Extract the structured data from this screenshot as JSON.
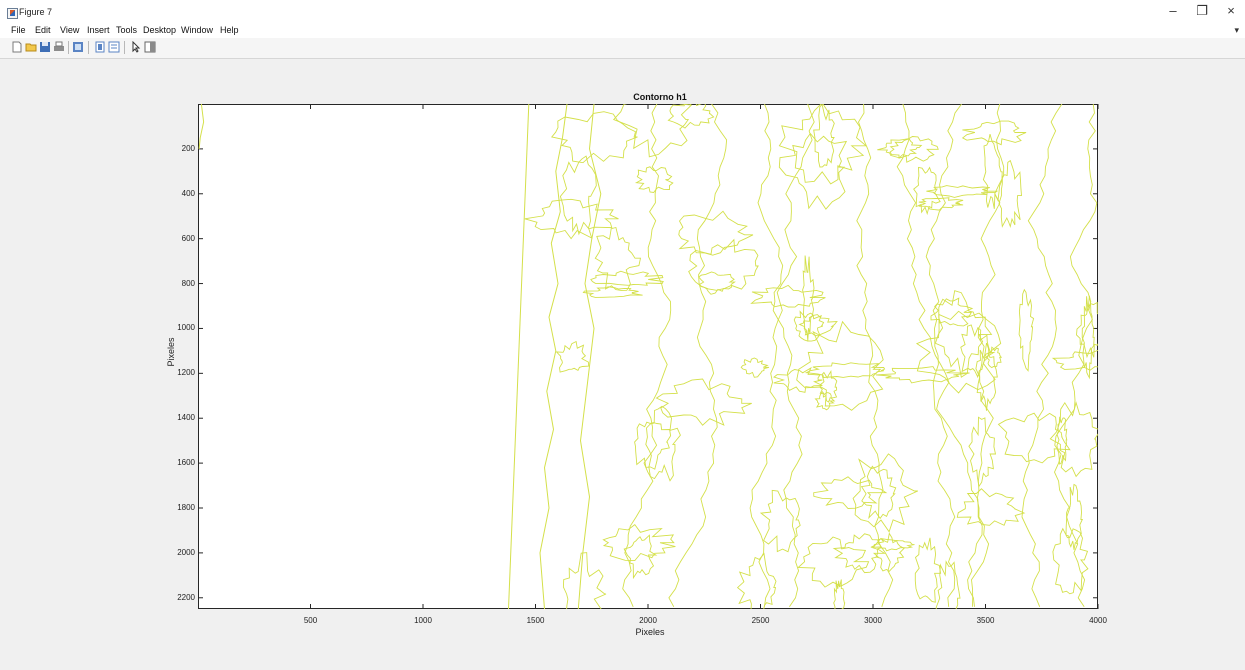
{
  "window": {
    "title": "Figure 7",
    "controls": {
      "minimize": "–",
      "restore": "❐",
      "close": "×"
    }
  },
  "menu": {
    "items": [
      "File",
      "Edit",
      "View",
      "Insert",
      "Tools",
      "Desktop",
      "Window",
      "Help"
    ],
    "overflow": "▾"
  },
  "toolbar": {
    "buttons": [
      "new-figure-icon",
      "open-file-icon",
      "save-icon",
      "print-icon",
      "link-plot-icon",
      "colorbar-icon",
      "legend-icon",
      "pointer-icon",
      "property-editor-icon"
    ]
  },
  "chart_data": {
    "type": "line",
    "title": "Contorno h1",
    "xlabel": "Pixeles",
    "ylabel": "Pixeles",
    "xlim": [
      0,
      4000
    ],
    "ylim": [
      0,
      2250
    ],
    "y_reversed": true,
    "grid": false,
    "xticks": [
      500,
      1000,
      1500,
      2000,
      2500,
      3000,
      3500,
      4000
    ],
    "yticks": [
      200,
      400,
      600,
      800,
      1000,
      1200,
      1400,
      1600,
      1800,
      2000,
      2200
    ],
    "line_color": "#d4e04a",
    "series": [
      {
        "x": [
          1470,
          1380
        ],
        "y": [
          0,
          2250
        ]
      },
      {
        "x": [
          1640,
          1620,
          1590,
          1610,
          1570,
          1600,
          1560,
          1590,
          1550,
          1580,
          1540,
          1560,
          1520,
          1540
        ],
        "y": [
          0,
          150,
          300,
          480,
          620,
          800,
          950,
          1100,
          1280,
          1450,
          1620,
          1800,
          2000,
          2250
        ]
      },
      {
        "x": [
          1760,
          1740,
          1790,
          1750,
          1720,
          1760,
          1730,
          1700,
          1740,
          1710,
          1690
        ],
        "y": [
          0,
          200,
          400,
          600,
          800,
          1000,
          1250,
          1500,
          1750,
          2000,
          2250
        ]
      }
    ]
  }
}
